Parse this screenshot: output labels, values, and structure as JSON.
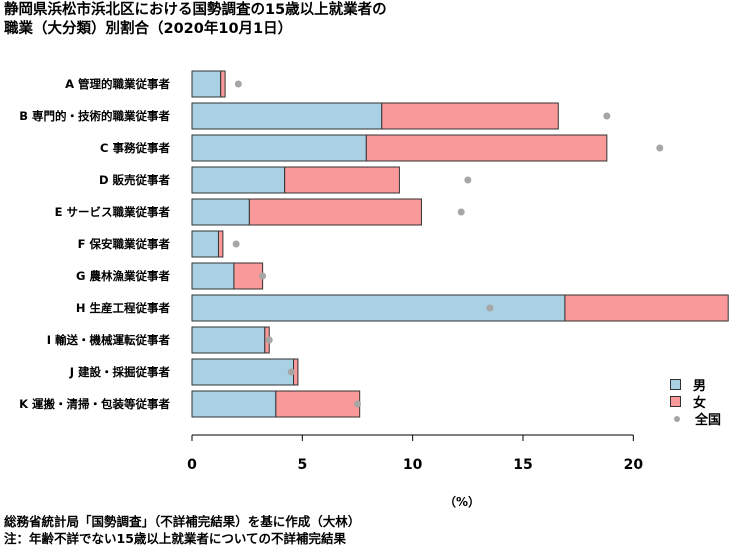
{
  "title_line1": "静岡県浜松市浜北区における国勢調査の15歳以上就業者の",
  "title_line2": "職業（大分類）別割合（2020年10月1日）",
  "unit_label": "（%）",
  "source_note": "総務省統計局「国勢調査」（不詳補完結果）を基に作成（大林）",
  "footnote": "注：年齢不詳でない15歳以上就業者についての不詳補完結果",
  "legend": {
    "male": "男",
    "female": "女",
    "national": "全国"
  },
  "colors": {
    "male": "#a9d0e3",
    "female": "#f99999",
    "national": "#a6a6a6",
    "bar_border": "#333333"
  },
  "chart_data": {
    "type": "bar",
    "orientation": "horizontal",
    "stacked": true,
    "categories": [
      "A 管理的職業従事者",
      "B 専門的・技術的職業従事者",
      "C 事務従事者",
      "D 販売従事者",
      "E サービス職業従事者",
      "F 保安職業従事者",
      "G 農林漁業従事者",
      "H 生産工程従事者",
      "I 輸送・機械運転従事者",
      "J 建設・採掘従事者",
      "K 運搬・清掃・包装等従事者"
    ],
    "series": [
      {
        "name": "男",
        "values": [
          1.3,
          8.6,
          7.9,
          4.2,
          2.6,
          1.2,
          1.9,
          16.9,
          3.3,
          4.6,
          3.8
        ]
      },
      {
        "name": "女",
        "values": [
          0.2,
          8.0,
          10.9,
          5.2,
          7.8,
          0.2,
          1.3,
          7.4,
          0.2,
          0.2,
          3.8
        ]
      },
      {
        "name": "全国",
        "type": "scatter",
        "values": [
          2.1,
          18.8,
          21.2,
          12.5,
          12.2,
          2.0,
          3.2,
          13.5,
          3.5,
          4.5,
          7.5
        ]
      }
    ],
    "xlim": [
      0,
      24.2
    ],
    "xticks": [
      0,
      5,
      10,
      15,
      20
    ],
    "xlabel": "（%）",
    "legend_position": "bottom-right"
  }
}
